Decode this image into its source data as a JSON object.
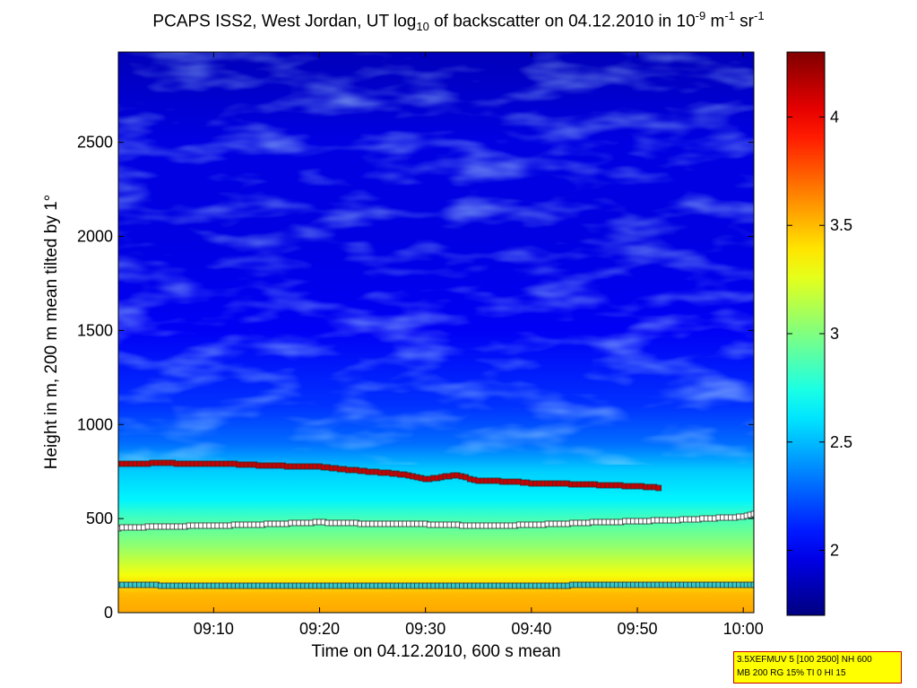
{
  "title_parts": {
    "a": "PCAPS ISS2, West Jordan, UT log",
    "sub": "10",
    "b": " of backscatter on 04.12.2010 in 10",
    "sup1": "-9",
    "c": " m",
    "sup2": "-1",
    "d": " sr",
    "sup3": "-1"
  },
  "info_box": {
    "line1": "3.5XEFMUV 5 [100 2500] NH 600",
    "line2": "MB 200 RG 15% TI 0 HI 15"
  },
  "chart_data": {
    "type": "heatmap",
    "title": "PCAPS ISS2, West Jordan, UT log10 of backscatter on 04.12.2010 in 10^-9 m^-1 sr^-1",
    "xlabel": "Time on 04.12.2010, 600 s mean",
    "ylabel": "Height in m, 200 m mean tilted by 1°",
    "x_ticks": [
      "09:10",
      "09:20",
      "09:30",
      "09:40",
      "09:50",
      "10:00"
    ],
    "x_range": [
      "09:01",
      "10:01"
    ],
    "y_ticks": [
      0,
      500,
      1000,
      1500,
      2000,
      2500
    ],
    "ylim": [
      0,
      2980
    ],
    "colorbar": {
      "ticks": [
        2,
        2.5,
        3,
        3.5,
        4
      ],
      "range": [
        1.7,
        4.3
      ],
      "colormap": "jet"
    },
    "heatmap_profile_log10": [
      {
        "height": 0,
        "value": 3.55
      },
      {
        "height": 100,
        "value": 3.5
      },
      {
        "height": 200,
        "value": 3.3
      },
      {
        "height": 350,
        "value": 3.05
      },
      {
        "height": 500,
        "value": 2.85
      },
      {
        "height": 600,
        "value": 2.65
      },
      {
        "height": 750,
        "value": 2.55
      },
      {
        "height": 900,
        "value": 2.3
      },
      {
        "height": 1100,
        "value": 2.15
      },
      {
        "height": 1500,
        "value": 2.0
      },
      {
        "height": 2000,
        "value": 1.95
      },
      {
        "height": 2500,
        "value": 1.95
      },
      {
        "height": 2980,
        "value": 1.85
      }
    ],
    "series": [
      {
        "color": "#cc0000",
        "x": [
          "09:01",
          "09:05",
          "09:08",
          "09:12",
          "09:15",
          "09:20",
          "09:25",
          "09:28",
          "09:30",
          "09:33",
          "09:35",
          "09:38",
          "09:40",
          "09:43",
          "09:46",
          "09:50",
          "09:52"
        ],
        "values": [
          790,
          795,
          792,
          790,
          782,
          775,
          748,
          735,
          710,
          730,
          700,
          698,
          688,
          685,
          680,
          672,
          665
        ]
      },
      {
        "color": "#ffffff",
        "x": [
          "09:01",
          "09:05",
          "09:10",
          "09:15",
          "09:20",
          "09:25",
          "09:30",
          "09:35",
          "09:40",
          "09:45",
          "09:50",
          "09:55",
          "10:00",
          "10:01"
        ],
        "values": [
          450,
          458,
          462,
          470,
          480,
          472,
          470,
          462,
          466,
          478,
          486,
          495,
          510,
          525
        ]
      },
      {
        "color": "#33cccc",
        "x": [
          "09:01",
          "09:05",
          "09:10",
          "09:20",
          "09:30",
          "09:40",
          "09:50",
          "10:00",
          "10:01"
        ],
        "values": [
          150,
          145,
          143,
          142,
          143,
          144,
          148,
          150,
          150
        ]
      }
    ]
  }
}
